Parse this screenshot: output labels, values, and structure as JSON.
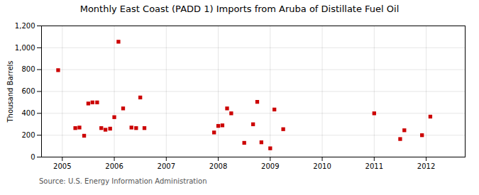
{
  "chart_data": {
    "type": "scatter",
    "title": "Monthly East Coast (PADD 1) Imports from Aruba of Distillate Fuel Oil",
    "ylabel": "Thousand Barrels",
    "source": "Source: U.S. Energy Information Administration",
    "color": "#cc0000",
    "marker": "square",
    "grid": true,
    "xlim": [
      2004.6,
      2012.75
    ],
    "xticks": [
      2005,
      2006,
      2007,
      2008,
      2009,
      2010,
      2011,
      2012
    ],
    "ylim": [
      0,
      1200
    ],
    "yticks": [
      0,
      200,
      400,
      600,
      800,
      {
        "value": 1000,
        "label": "1,000"
      },
      {
        "value": 1200,
        "label": "1,200"
      }
    ],
    "x": [
      2004.92,
      2005.25,
      2005.33,
      2005.42,
      2005.5,
      2005.58,
      2005.67,
      2005.75,
      2005.83,
      2005.92,
      2006.0,
      2006.08,
      2006.17,
      2006.33,
      2006.42,
      2006.5,
      2006.58,
      2007.92,
      2008.0,
      2008.08,
      2008.17,
      2008.25,
      2008.5,
      2008.67,
      2008.75,
      2008.83,
      2009.0,
      2009.08,
      2009.25,
      2011.0,
      2011.5,
      2011.58,
      2011.92,
      2012.08
    ],
    "values": [
      795,
      265,
      270,
      195,
      490,
      500,
      500,
      265,
      250,
      260,
      365,
      1055,
      445,
      270,
      265,
      545,
      265,
      225,
      285,
      290,
      445,
      400,
      130,
      300,
      505,
      135,
      80,
      435,
      255,
      400,
      165,
      245,
      200,
      370
    ]
  }
}
